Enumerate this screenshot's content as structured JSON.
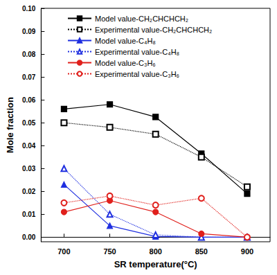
{
  "chart_data": {
    "type": "line",
    "x_label": "SR temperature(°C)",
    "y_label": "Mole fraction",
    "x": [
      700,
      750,
      800,
      850,
      900
    ],
    "xlim": [
      675,
      925
    ],
    "xticks": [
      700,
      750,
      800,
      850,
      900
    ],
    "ylim": [
      -0.002,
      0.1
    ],
    "yticks": [
      {
        "value": 0,
        "label": "0.00"
      },
      {
        "value": 0.01,
        "label": "0.01"
      },
      {
        "value": 0.02,
        "label": "0.02"
      },
      {
        "value": 0.03,
        "label": "0.03"
      },
      {
        "value": 0.04,
        "label": "0.04"
      },
      {
        "value": 0.05,
        "label": "0.05"
      },
      {
        "value": 0.06,
        "label": "0.06"
      },
      {
        "value": 0.07,
        "label": "0.07"
      },
      {
        "value": 0.08,
        "label": "0.08"
      },
      {
        "value": 0.09,
        "label": "0.09"
      },
      {
        "value": 0.1,
        "label": "0.10"
      }
    ],
    "grid": false,
    "legend": "upper left",
    "series": [
      {
        "name": "Model value-CH₂CHCHCH₂",
        "color": "#000000",
        "marker": "square",
        "line_style": "solid",
        "values": [
          0.056,
          0.058,
          0.0525,
          0.0365,
          0.019
        ]
      },
      {
        "name": "Experimental value-CH₂CHCHCH₂",
        "color": "#000000",
        "marker": "open_square",
        "line_style": "dotted",
        "values": [
          0.05,
          0.048,
          0.045,
          0.035,
          0.022
        ]
      },
      {
        "name": "Model value-C₄H₈",
        "color": "#1f2fe0",
        "marker": "triangle",
        "line_style": "solid",
        "values": [
          0.023,
          0.005,
          0.0003,
          0,
          0
        ]
      },
      {
        "name": "Experimental value-C₄H₈",
        "color": "#1f2fe0",
        "marker": "open_triangle",
        "line_style": "dotted",
        "values": [
          0.03,
          0.01,
          0.001,
          0,
          0
        ]
      },
      {
        "name": "Model value-C₃H₆",
        "color": "#e0201c",
        "marker": "circle",
        "line_style": "solid",
        "values": [
          0.011,
          0.016,
          0.011,
          0.0015,
          0
        ]
      },
      {
        "name": "Experimental value-C₃H₆",
        "color": "#e0201c",
        "marker": "open_circle",
        "line_style": "dotted",
        "values": [
          0.015,
          0.018,
          0.014,
          0.017,
          0
        ]
      }
    ]
  }
}
